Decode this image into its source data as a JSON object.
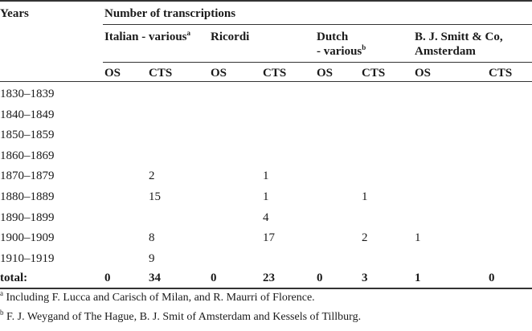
{
  "table": {
    "years_header": "Years",
    "group_header": "Number of transcriptions",
    "publishers": [
      {
        "label": "Italian - various",
        "sup": "a"
      },
      {
        "label": "Ricordi",
        "sup": ""
      },
      {
        "label": "Dutch",
        "label2": "- various",
        "sup": "b"
      },
      {
        "label": "B. J. Smitt & Co,",
        "label2": "Amsterdam",
        "sup": ""
      }
    ],
    "sub_headers": [
      "OS",
      "CTS",
      "OS",
      "CTS",
      "OS",
      "CTS",
      "OS",
      "CTS"
    ],
    "rows": [
      {
        "year": "1830–1839",
        "values": [
          "",
          "",
          "",
          "",
          "",
          "",
          "",
          ""
        ]
      },
      {
        "year": "1840–1849",
        "values": [
          "",
          "",
          "",
          "",
          "",
          "",
          "",
          ""
        ]
      },
      {
        "year": "1850–1859",
        "values": [
          "",
          "",
          "",
          "",
          "",
          "",
          "",
          ""
        ]
      },
      {
        "year": "1860–1869",
        "values": [
          "",
          "",
          "",
          "",
          "",
          "",
          "",
          ""
        ]
      },
      {
        "year": "1870–1879",
        "values": [
          "",
          "2",
          "",
          "1",
          "",
          "",
          "",
          ""
        ]
      },
      {
        "year": "1880–1889",
        "values": [
          "",
          "15",
          "",
          "1",
          "",
          "1",
          "",
          ""
        ]
      },
      {
        "year": "1890–1899",
        "values": [
          "",
          "",
          "",
          "4",
          "",
          "",
          "",
          ""
        ]
      },
      {
        "year": "1900–1909",
        "values": [
          "",
          "8",
          "",
          "17",
          "",
          "2",
          "1",
          ""
        ]
      },
      {
        "year": "1910–1919",
        "values": [
          "",
          "9",
          "",
          "",
          "",
          "",
          "",
          ""
        ]
      }
    ],
    "total": {
      "label": "total:",
      "values": [
        "0",
        "34",
        "0",
        "23",
        "0",
        "3",
        "1",
        "0"
      ]
    }
  },
  "footnotes": [
    {
      "mark": "a",
      "text": "Including F. Lucca and Carisch of Milan, and R. Maurri of Florence."
    },
    {
      "mark": "b",
      "text": "F. J. Weygand of The Hague, B. J. Smit of Amsterdam and Kessels of Tillburg."
    }
  ]
}
